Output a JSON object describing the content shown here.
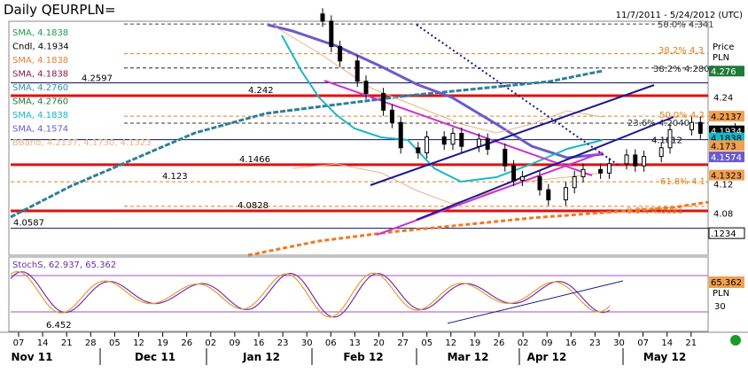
{
  "header": {
    "title": "Daily QEURPLN=",
    "date_range": "11/7/2011 - 5/24/2012 (UTC)"
  },
  "price_axis": {
    "label_top": "Price",
    "label_unit": "PLN",
    "ticks": [
      "4.24",
      "4.12",
      "4.08"
    ]
  },
  "right_value_boxes": [
    {
      "value": "4.276",
      "color": "#1f7a3a",
      "price": 4.276
    },
    {
      "value": "4.2137",
      "color": "#f0a050",
      "price": 4.2137
    },
    {
      "value": "4.1934",
      "color": "#000000",
      "price": 4.1934
    },
    {
      "value": "4.1838",
      "color": "#18b8c8",
      "price": 4.1838
    },
    {
      "value": "4.173",
      "color": "#f0a050",
      "price": 4.173
    },
    {
      "value": "4.1574",
      "color": "#6a5acd",
      "price": 4.1574
    },
    {
      "value": "4.1323",
      "color": "#f0a050",
      "price": 4.1323
    },
    {
      "value": ".1234",
      "color": "#ffffff",
      "price": 4.052
    }
  ],
  "legend": [
    {
      "text": "SMA, 4.1838",
      "color": "#1f9a4a"
    },
    {
      "text": "Cndl, 4.1934",
      "color": "#000000"
    },
    {
      "text": "SMA, 4.1838",
      "color": "#e0803a"
    },
    {
      "text": "SMA, 4.1838",
      "color": "#8b1a4a"
    },
    {
      "text": "SMA, 4.2760",
      "color": "#2f8fb0"
    },
    {
      "text": "SMA, 4.2760",
      "color": "#1f7a3a"
    },
    {
      "text": "SMA, 4.1838",
      "color": "#18b8c8"
    },
    {
      "text": "SMA, 4.1574",
      "color": "#6a5acd"
    },
    {
      "text": "BBand, 4.2137, 4.1730, 4.1323",
      "color": "#f0b080"
    }
  ],
  "fib_labels": {
    "f50": "50.0%  4.341",
    "f382_top": "38.2%  4.3",
    "f382": "38.2%  4.2802",
    "f236": "23.6%  4.2040",
    "f50b": "50.0%  4.2",
    "f618": "61.8%  4.1",
    "f0": "0.0%  4.0891"
  },
  "level_labels": [
    {
      "text": "4.2597",
      "price": 4.2597
    },
    {
      "text": "4.242",
      "price": 4.242
    },
    {
      "text": "4.1466",
      "price": 4.1466
    },
    {
      "text": "4.123",
      "price": 4.123
    },
    {
      "text": "4.0828",
      "price": 4.0828
    },
    {
      "text": "4.0587",
      "price": 4.0587
    },
    {
      "text": "4.1812",
      "price": 4.1812
    }
  ],
  "stoch": {
    "label": "StochS, 62.937, 65.362",
    "value_box": "65.362",
    "unit": "PLN",
    "tick": "30",
    "low_label": "6.452"
  },
  "x_axis": {
    "days": [
      "07",
      "14",
      "21",
      "28",
      "05",
      "12",
      "19",
      "26",
      "02",
      "09",
      "16",
      "23",
      "30",
      "06",
      "13",
      "20",
      "27",
      "05",
      "12",
      "19",
      "26",
      "02",
      "09",
      "16",
      "23",
      "30",
      "07",
      "14",
      "21"
    ],
    "months": [
      "Nov 11",
      "Dec 11",
      "Jan 12",
      "Feb 12",
      "Mar 12",
      "Apr 12",
      "May 12"
    ]
  },
  "chart_data": {
    "type": "candlestick",
    "title": "Daily QEURPLN=",
    "ylabel": "Price PLN",
    "ylim": [
      4.04,
      4.35
    ],
    "xrange": [
      "2011-11-07",
      "2012-05-24"
    ],
    "horizontal_levels": [
      4.2597,
      4.242,
      4.1466,
      4.123,
      4.0828,
      4.0587,
      4.1812
    ],
    "fibonacci": [
      {
        "level": "38.2%",
        "price": 4.2802
      },
      {
        "level": "23.6%",
        "price": 4.204
      },
      {
        "level": "61.8%",
        "price": 4.123
      },
      {
        "level": "0.0%",
        "price": 4.0891
      }
    ],
    "closes": [
      {
        "date": "2012-01-16",
        "close": 4.345
      },
      {
        "date": "2012-01-18",
        "close": 4.31
      },
      {
        "date": "2012-01-20",
        "close": 4.29
      },
      {
        "date": "2012-01-24",
        "close": 4.262
      },
      {
        "date": "2012-01-26",
        "close": 4.245
      },
      {
        "date": "2012-01-30",
        "close": 4.222
      },
      {
        "date": "2012-02-01",
        "close": 4.205
      },
      {
        "date": "2012-02-03",
        "close": 4.17
      },
      {
        "date": "2012-02-07",
        "close": 4.163
      },
      {
        "date": "2012-02-09",
        "close": 4.185
      },
      {
        "date": "2012-02-13",
        "close": 4.175
      },
      {
        "date": "2012-02-15",
        "close": 4.19
      },
      {
        "date": "2012-02-17",
        "close": 4.172
      },
      {
        "date": "2012-02-21",
        "close": 4.182
      },
      {
        "date": "2012-02-23",
        "close": 4.168
      },
      {
        "date": "2012-02-27",
        "close": 4.145
      },
      {
        "date": "2012-02-29",
        "close": 4.125
      },
      {
        "date": "2012-03-02",
        "close": 4.13
      },
      {
        "date": "2012-03-06",
        "close": 4.112
      },
      {
        "date": "2012-03-08",
        "close": 4.098
      },
      {
        "date": "2012-03-12",
        "close": 4.115
      },
      {
        "date": "2012-03-14",
        "close": 4.13
      },
      {
        "date": "2012-03-16",
        "close": 4.14
      },
      {
        "date": "2012-03-20",
        "close": 4.135
      },
      {
        "date": "2012-03-22",
        "close": 4.148
      },
      {
        "date": "2012-03-26",
        "close": 4.16
      },
      {
        "date": "2012-03-28",
        "close": 4.145
      },
      {
        "date": "2012-03-30",
        "close": 4.158
      },
      {
        "date": "2012-04-03",
        "close": 4.17
      },
      {
        "date": "2012-04-05",
        "close": 4.195
      },
      {
        "date": "2012-04-10",
        "close": 4.205
      },
      {
        "date": "2012-04-12",
        "close": 4.19
      },
      {
        "date": "2012-04-16",
        "close": 4.185
      },
      {
        "date": "2012-04-18",
        "close": 4.19
      },
      {
        "date": "2012-04-20",
        "close": 4.196
      },
      {
        "date": "2012-04-24",
        "close": 4.193
      }
    ]
  }
}
